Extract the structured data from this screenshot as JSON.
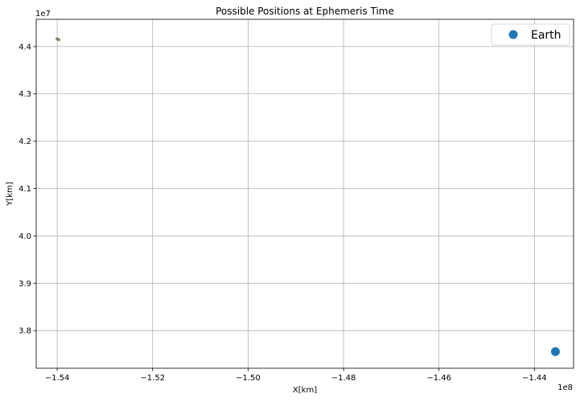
{
  "chart_data": {
    "type": "scatter",
    "title": "Possible Positions at Ephemeris Time",
    "xlabel": "X[km]",
    "ylabel": "Y[km]",
    "x_offset_label": "1e8",
    "y_offset_label": "1e7",
    "xlim": [
      -1.5444,
      -1.4318
    ],
    "ylim": [
      3.7205,
      4.4575
    ],
    "x_ticks": [
      -1.54,
      -1.52,
      -1.5,
      -1.48,
      -1.46,
      -1.44
    ],
    "x_tick_labels": [
      "−1.54",
      "−1.52",
      "−1.50",
      "−1.48",
      "−1.46",
      "−1.44"
    ],
    "y_ticks": [
      3.8,
      3.9,
      4.0,
      4.1,
      4.2,
      4.3,
      4.4
    ],
    "y_tick_labels": [
      "3.8",
      "3.9",
      "4.0",
      "4.1",
      "4.2",
      "4.3",
      "4.4"
    ],
    "grid": true,
    "legend_position": "top-right",
    "series": [
      {
        "name": "Earth",
        "color": "#1f77b4",
        "marker_size": "large",
        "points": [
          {
            "x": -1.4356,
            "y": 3.7555
          }
        ]
      },
      {
        "color": "#7f7f7f",
        "marker_size": "small",
        "points": [
          {
            "x": -1.54,
            "y": 4.4165
          },
          {
            "x": -1.5398,
            "y": 4.4155
          },
          {
            "x": -1.5397,
            "y": 4.4145
          },
          {
            "x": -1.5399,
            "y": 4.415
          }
        ]
      },
      {
        "color": "#bcbd22",
        "marker_size": "small",
        "points": [
          {
            "x": -1.5401,
            "y": 4.416
          },
          {
            "x": -1.5396,
            "y": 4.414
          }
        ]
      },
      {
        "color": "#d62728",
        "marker_size": "small",
        "points": [
          {
            "x": -1.5398,
            "y": 4.4158
          },
          {
            "x": -1.5397,
            "y": 4.4148
          }
        ]
      }
    ]
  }
}
